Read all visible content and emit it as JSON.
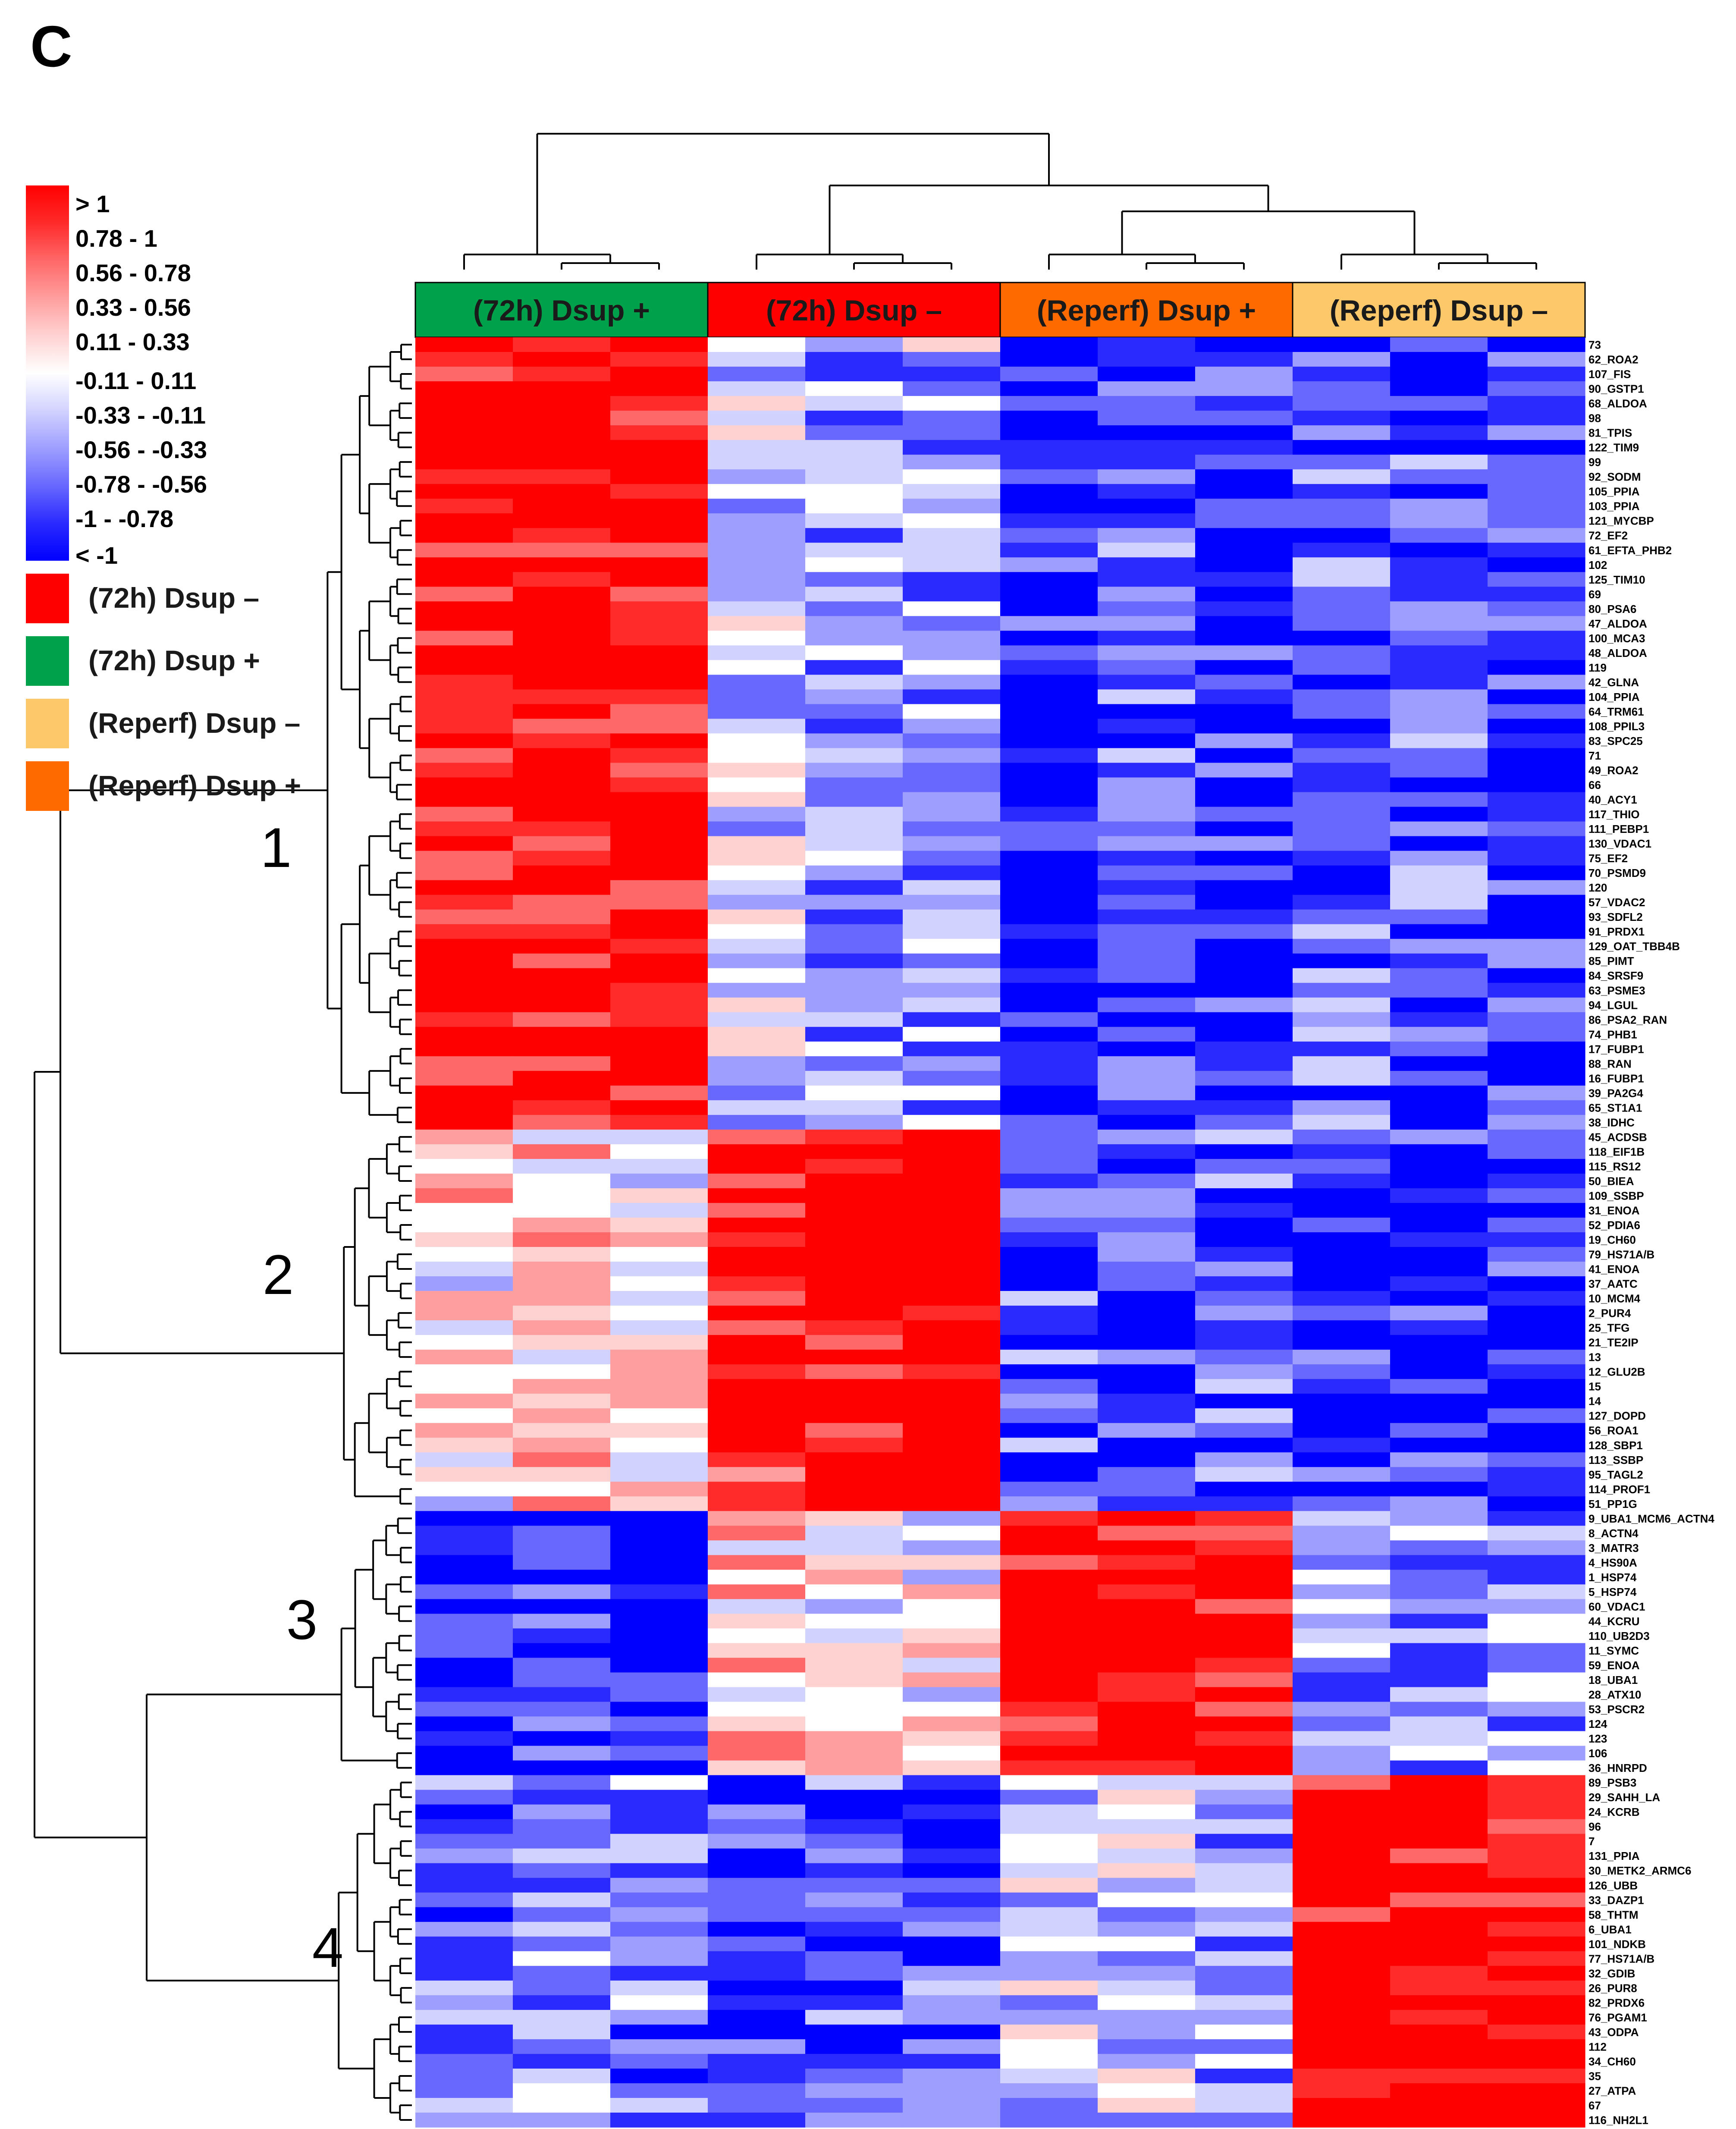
{
  "panel_label": "C",
  "legend": {
    "scale": [
      {
        "label": "> 1",
        "color": "#ff0000"
      },
      {
        "label": "0.78 - 1",
        "color": "#ff2a2a"
      },
      {
        "label": "0.56 - 0.78",
        "color": "#ff6868"
      },
      {
        "label": "0.33 - 0.56",
        "color": "#ff9e9e"
      },
      {
        "label": "0.11 - 0.33",
        "color": "#ffd2d2"
      },
      {
        "label": "-0.11 - 0.11",
        "color": "#ffffff"
      },
      {
        "label": "-0.33 - -0.11",
        "color": "#d2d2ff"
      },
      {
        "label": "-0.56 - -0.33",
        "color": "#9e9eff"
      },
      {
        "label": "-0.78 - -0.56",
        "color": "#6868ff"
      },
      {
        "label": "-1 - -0.78",
        "color": "#2a2aff"
      },
      {
        "label": "< -1",
        "color": "#0000ff"
      }
    ],
    "groups": [
      {
        "label": "(72h) Dsup –",
        "color": "#ff0000"
      },
      {
        "label": "(72h) Dsup +",
        "color": "#00a14b"
      },
      {
        "label": "(Reperf) Dsup –",
        "color": "#fdc86a"
      },
      {
        "label": "(Reperf) Dsup +",
        "color": "#ff6a00"
      }
    ]
  },
  "cluster_labels": [
    "1",
    "2",
    "3",
    "4"
  ],
  "chart_data": {
    "type": "heatmap",
    "column_groups": [
      {
        "label": "(72h) Dsup +",
        "color": "#00a14b",
        "n": 3
      },
      {
        "label": "(72h) Dsup –",
        "color": "#ff0000",
        "n": 3
      },
      {
        "label": "(Reperf) Dsup +",
        "color": "#ff6a00",
        "n": 3
      },
      {
        "label": "(Reperf) Dsup –",
        "color": "#fdc86a",
        "n": 3
      }
    ],
    "color_scale": [
      "#0000ff",
      "#2a2aff",
      "#6868ff",
      "#9e9eff",
      "#d2d2ff",
      "#ffffff",
      "#ffd2d2",
      "#ff9e9e",
      "#ff6868",
      "#ff2a2a",
      "#ff0000"
    ],
    "row_labels": [
      "73",
      "62_ROA2",
      "107_FIS",
      "90_GSTP1",
      "68_ALDOA",
      "98",
      "81_TPIS",
      "122_TIM9",
      "99",
      "92_SODM",
      "105_PPIA",
      "103_PPIA",
      "121_MYCBP",
      "72_EF2",
      "61_EFTA_PHB2",
      "102",
      "125_TIM10",
      "69",
      "80_PSA6",
      "47_ALDOA",
      "100_MCA3",
      "48_ALDOA",
      "119",
      "42_GLNA",
      "104_PPIA",
      "64_TRM61",
      "108_PPIL3",
      "83_SPC25",
      "71",
      "49_ROA2",
      "66",
      "40_ACY1",
      "117_THIO",
      "111_PEBP1",
      "130_VDAC1",
      "75_EF2",
      "70_PSMD9",
      "120",
      "57_VDAC2",
      "93_SDFL2",
      "91_PRDX1",
      "129_OAT_TBB4B",
      "85_PIMT",
      "84_SRSF9",
      "63_PSME3",
      "94_LGUL",
      "86_PSA2_RAN",
      "74_PHB1",
      "17_FUBP1",
      "88_RAN",
      "16_FUBP1",
      "39_PA2G4",
      "65_ST1A1",
      "38_IDHC",
      "45_ACDSB",
      "118_EIF1B",
      "115_RS12",
      "50_BIEA",
      "109_SSBP",
      "31_ENOA",
      "52_PDIA6",
      "19_CH60",
      "79_HS71A/B",
      "41_ENOA",
      "37_AATC",
      "10_MCM4",
      "2_PUR4",
      "25_TFG",
      "21_TE2IP",
      "13",
      "12_GLU2B",
      "15",
      "14",
      "127_DOPD",
      "56_ROA1",
      "128_SBP1",
      "113_SSBP",
      "95_TAGL2",
      "114_PROF1",
      "51_PP1G",
      "9_UBA1_MCM6_ACTN4",
      "8_ACTN4",
      "3_MATR3",
      "4_HS90A",
      "1_HSP74",
      "5_HSP74",
      "60_VDAC1",
      "44_KCRU",
      "110_UB2D3",
      "11_SYMC",
      "59_ENOA",
      "18_UBA1",
      "28_ATX10",
      "53_PSCR2",
      "124",
      "123",
      "106",
      "36_HNRPD",
      "89_PSB3",
      "29_SAHH_LA",
      "24_KCRB",
      "96",
      "7",
      "131_PPIA",
      "30_METK2_ARMC6",
      "126_UBB",
      "33_DAZP1",
      "58_THTM",
      "6_UBA1",
      "101_NDKB",
      "77_HS71A/B",
      "32_GDIB",
      "26_PUR8",
      "82_PRDX6",
      "76_PGAM1",
      "43_ODPA",
      "112",
      "34_CH60",
      "35",
      "27_ATPA",
      "67",
      "116_NH2L1"
    ],
    "row_clusters": [
      {
        "label": "1",
        "rows": [
          0,
          53
        ]
      },
      {
        "label": "2",
        "rows": [
          54,
          79
        ]
      },
      {
        "label": "3",
        "rows": [
          80,
          97
        ]
      },
      {
        "label": "4",
        "rows": [
          98,
          121
        ]
      }
    ],
    "cluster_means": [
      {
        "cluster": "1",
        "values": [
          1.2,
          1.2,
          1.2,
          -0.2,
          -0.5,
          -0.4,
          -1.1,
          -0.8,
          -1.0,
          -0.7,
          -0.8,
          -0.9
        ]
      },
      {
        "cluster": "2",
        "values": [
          0.1,
          0.2,
          0.1,
          1.1,
          1.2,
          1.3,
          -0.8,
          -0.9,
          -0.7,
          -1.0,
          -1.0,
          -1.0
        ]
      },
      {
        "cluster": "3",
        "values": [
          -1.1,
          -1.0,
          -1.1,
          0.3,
          0.0,
          0.0,
          1.2,
          1.3,
          1.2,
          -0.6,
          -0.6,
          -0.5
        ]
      },
      {
        "cluster": "4",
        "values": [
          -0.7,
          -0.5,
          -0.6,
          -0.9,
          -0.8,
          -0.8,
          -0.3,
          -0.2,
          -0.4,
          1.2,
          1.2,
          1.2
        ]
      }
    ],
    "xlabel": "",
    "ylabel": ""
  }
}
